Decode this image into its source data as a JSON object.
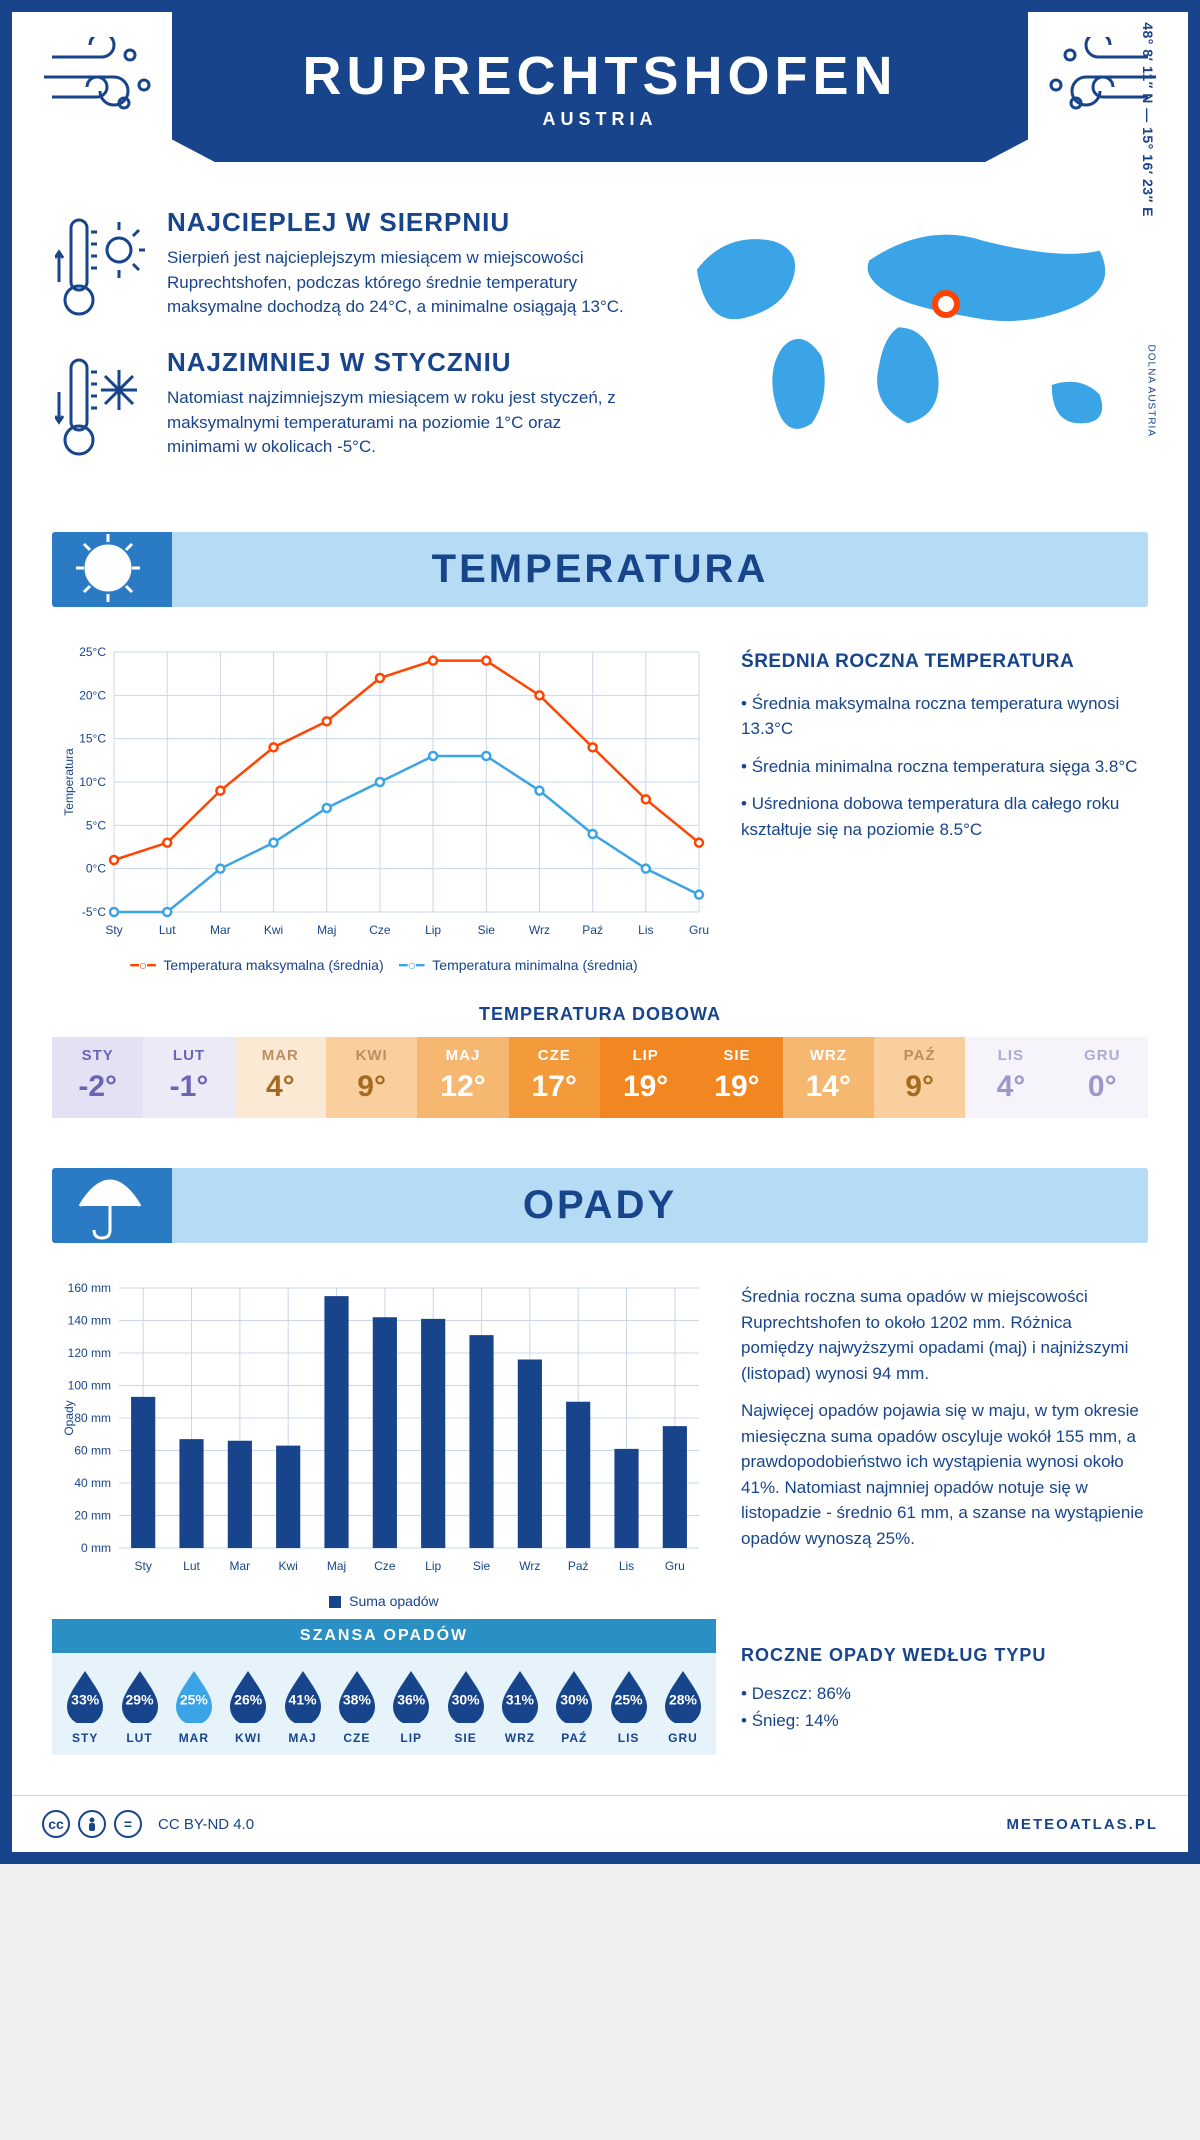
{
  "header": {
    "title": "RUPRECHTSHOFEN",
    "subtitle": "AUSTRIA"
  },
  "intro": {
    "hot": {
      "title": "NAJCIEPLEJ W SIERPNIU",
      "text": "Sierpień jest najcieplejszym miesiącem w miejscowości Ruprechtshofen, podczas którego średnie temperatury maksymalne dochodzą do 24°C, a minimalne osiągają 13°C."
    },
    "cold": {
      "title": "NAJZIMNIEJ W STYCZNIU",
      "text": "Natomiast najzimniejszym miesiącem w roku jest styczeń, z maksymalnymi temperaturami na poziomie 1°C oraz minimami w okolicach -5°C."
    },
    "coords": "48° 8′ 11″ N — 15° 16′ 23″ E",
    "region": "DOLNA AUSTRIA"
  },
  "temp": {
    "section_title": "TEMPERATURA",
    "chart": {
      "type": "line",
      "months": [
        "Sty",
        "Lut",
        "Mar",
        "Kwi",
        "Maj",
        "Cze",
        "Lip",
        "Sie",
        "Wrz",
        "Paź",
        "Lis",
        "Gru"
      ],
      "max_series": {
        "label": "Temperatura maksymalna (średnia)",
        "color": "#ff4400",
        "values": [
          1,
          3,
          9,
          14,
          17,
          22,
          24,
          24,
          20,
          14,
          8,
          3
        ]
      },
      "min_series": {
        "label": "Temperatura minimalna (średnia)",
        "color": "#3aa4e6",
        "values": [
          -5,
          -5,
          0,
          3,
          7,
          10,
          13,
          13,
          9,
          4,
          0,
          -3
        ]
      },
      "ylabel": "Temperatura",
      "ymin": -5,
      "ymax": 25,
      "ystep": 5,
      "grid_color": "#c9d7e8",
      "axis_label_color": "#17448a",
      "label_fontsize": 12
    },
    "info": {
      "title": "ŚREDNIA ROCZNA TEMPERATURA",
      "lines": [
        "• Średnia maksymalna roczna temperatura wynosi 13.3°C",
        "• Średnia minimalna roczna temperatura sięga 3.8°C",
        "• Uśredniona dobowa temperatura dla całego roku kształtuje się na poziomie 8.5°C"
      ]
    },
    "daily": {
      "title": "TEMPERATURA DOBOWA",
      "months": [
        "STY",
        "LUT",
        "MAR",
        "KWI",
        "MAJ",
        "CZE",
        "LIP",
        "SIE",
        "WRZ",
        "PAŹ",
        "LIS",
        "GRU"
      ],
      "values": [
        "-2°",
        "-1°",
        "4°",
        "9°",
        "12°",
        "17°",
        "19°",
        "19°",
        "14°",
        "9°",
        "4°",
        "0°"
      ],
      "cell_bg": [
        "#e3e2f5",
        "#eceaf7",
        "#fce9d4",
        "#f9cf9e",
        "#f6b871",
        "#f39a3a",
        "#f28621",
        "#f28621",
        "#f6b871",
        "#f9cf9e",
        "#f6f4fa",
        "#f6f4fa"
      ],
      "cell_text": [
        "#6a65b2",
        "#6a65b2",
        "#a56a22",
        "#a56a22",
        "#ffffff",
        "#ffffff",
        "#ffffff",
        "#ffffff",
        "#ffffff",
        "#a56a22",
        "#9b97c9",
        "#9b97c9"
      ],
      "cell_month_text": [
        "#6a65b2",
        "#6a65b2",
        "#b98f62",
        "#b98f62",
        "#ffffff",
        "#ffffff",
        "#ffffff",
        "#ffffff",
        "#ffffff",
        "#b98f62",
        "#aeabd1",
        "#aeabd1"
      ]
    }
  },
  "precip": {
    "section_title": "OPADY",
    "chart": {
      "type": "bar",
      "months": [
        "Sty",
        "Lut",
        "Mar",
        "Kwi",
        "Maj",
        "Cze",
        "Lip",
        "Sie",
        "Wrz",
        "Paź",
        "Lis",
        "Gru"
      ],
      "values": [
        93,
        67,
        66,
        63,
        155,
        142,
        141,
        131,
        116,
        90,
        61,
        75
      ],
      "bar_color": "#17448a",
      "bar_width": 0.5,
      "ymin": 0,
      "ymax": 160,
      "ystep": 20,
      "yunit": " mm",
      "ylabel": "Opady",
      "legend": "Suma opadów",
      "grid_color": "#c9d7e8",
      "axis_label_color": "#17448a"
    },
    "text1": "Średnia roczna suma opadów w miejscowości Ruprechtshofen to około 1202 mm. Różnica pomiędzy najwyższymi opadami (maj) i najniższymi (listopad) wynosi 94 mm.",
    "text2": "Najwięcej opadów pojawia się w maju, w tym okresie miesięczna suma opadów oscyluje wokół 155 mm, a prawdopodobieństwo ich wystąpienia wynosi około 41%. Natomiast najmniej opadów notuje się w listopadzie - średnio 61 mm, a szanse na wystąpienie opadów wynoszą 25%.",
    "chance": {
      "title": "SZANSA OPADÓW",
      "months": [
        "STY",
        "LUT",
        "MAR",
        "KWI",
        "MAJ",
        "CZE",
        "LIP",
        "SIE",
        "WRZ",
        "PAŹ",
        "LIS",
        "GRU"
      ],
      "pct": [
        "33%",
        "29%",
        "25%",
        "26%",
        "41%",
        "38%",
        "36%",
        "30%",
        "31%",
        "30%",
        "25%",
        "28%"
      ],
      "drop_color": "#17448a",
      "highlight_index": 2,
      "highlight_color": "#3aa4e6"
    },
    "type_info": {
      "title": "ROCZNE OPADY WEDŁUG TYPU",
      "lines": [
        "• Deszcz: 86%",
        "• Śnieg: 14%"
      ]
    }
  },
  "footer": {
    "license": "CC BY-ND 4.0",
    "brand": "METEOATLAS.PL"
  }
}
